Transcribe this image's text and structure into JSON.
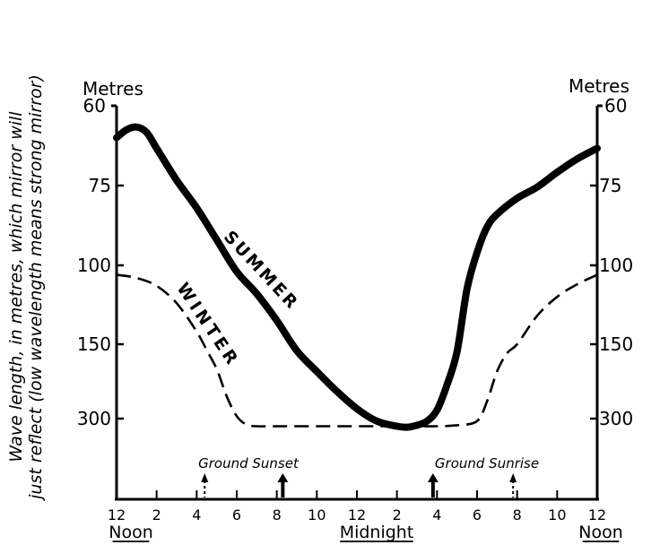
{
  "chart_data": {
    "type": "line",
    "ylabel_lines": [
      "Wave length, in metres, which mirror will",
      "just reflect (low wavelength means strong mirror)"
    ],
    "y_unit_left": "Metres",
    "y_unit_right": "Metres",
    "y_ticks": [
      "60",
      "75",
      "100",
      "150",
      "300"
    ],
    "y_reversed": true,
    "x_hours": [
      12,
      14,
      16,
      18,
      20,
      22,
      24,
      26,
      28,
      30,
      32,
      34,
      36
    ],
    "x_tick_labels": [
      "12",
      "2",
      "4",
      "6",
      "8",
      "10",
      "12",
      "2",
      "4",
      "6",
      "8",
      "10",
      "12"
    ],
    "x_group_labels": [
      "Noon",
      "Midnight",
      "Noon"
    ],
    "series": [
      {
        "name": "SUMMER",
        "style": "solid",
        "hours": [
          12,
          12.5,
          13,
          13.5,
          14,
          15,
          16,
          17,
          18,
          19,
          20,
          21,
          22,
          23,
          24,
          25,
          26,
          26.5,
          27,
          27.5,
          28,
          28.5,
          29,
          29.5,
          30,
          30.5,
          31,
          32,
          33,
          34,
          35,
          36
        ],
        "values": [
          66,
          64.5,
          64,
          65,
          68,
          74,
          82,
          92,
          104,
          118,
          135,
          163,
          205,
          245,
          280,
          305,
          315,
          317,
          313,
          305,
          283,
          232,
          165,
          115,
          96,
          88,
          84,
          79,
          75.5,
          72.5,
          70,
          68
        ]
      },
      {
        "name": "WINTER",
        "style": "dashed",
        "hours": [
          12,
          13,
          14,
          15,
          16,
          16.5,
          17,
          17.5,
          18,
          18.5,
          19,
          20,
          22,
          24,
          26,
          28,
          29,
          30,
          30.5,
          31,
          31.5,
          32,
          33,
          34,
          35,
          36
        ],
        "values": [
          106,
          108,
          113,
          124,
          142,
          162,
          200,
          255,
          295,
          312,
          315,
          315,
          315,
          315,
          315,
          315,
          313,
          305,
          265,
          205,
          168,
          150,
          132,
          120,
          112,
          106
        ]
      }
    ],
    "annotations": [
      {
        "text": "Ground Sunset",
        "arrows": [
          {
            "hour": 16.4,
            "style": "dotted"
          },
          {
            "hour": 20.3,
            "style": "solid"
          }
        ]
      },
      {
        "text": "Ground Sunrise",
        "arrows": [
          {
            "hour": 27.8,
            "style": "solid"
          },
          {
            "hour": 31.8,
            "style": "dotted"
          }
        ]
      }
    ],
    "grid": false
  }
}
